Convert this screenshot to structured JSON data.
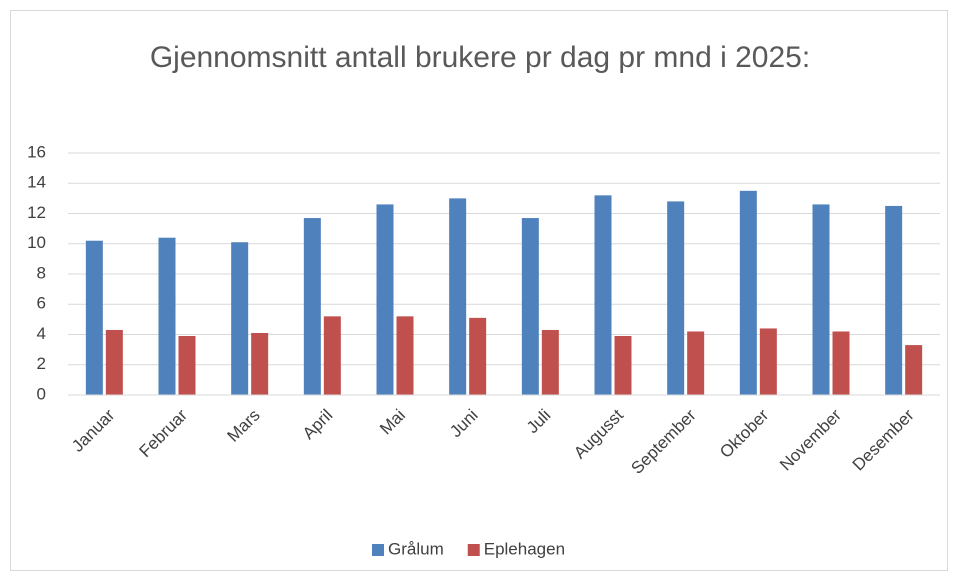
{
  "chart_data": {
    "type": "bar",
    "title": "Gjennomsnitt antall brukere pr dag pr mnd i 2025:",
    "categories": [
      "Januar",
      "Februar",
      "Mars",
      "April",
      "Mai",
      "Juni",
      "Juli",
      "Augusst",
      "September",
      "Oktober",
      "November",
      "Desember"
    ],
    "series": [
      {
        "name": "Grålum",
        "color": "#4f81bd",
        "values": [
          10.2,
          10.4,
          10.1,
          11.7,
          12.6,
          13.0,
          11.7,
          13.2,
          12.8,
          13.5,
          12.6,
          12.5
        ]
      },
      {
        "name": "Eplehagen",
        "color": "#c0504d",
        "values": [
          4.3,
          3.9,
          4.1,
          5.2,
          5.2,
          5.1,
          4.3,
          3.9,
          4.2,
          4.4,
          4.2,
          3.3
        ]
      }
    ],
    "ylim": [
      0,
      16
    ],
    "yticks": [
      0,
      2,
      4,
      6,
      8,
      10,
      12,
      14,
      16
    ],
    "grid": true,
    "legend": "bottom"
  }
}
